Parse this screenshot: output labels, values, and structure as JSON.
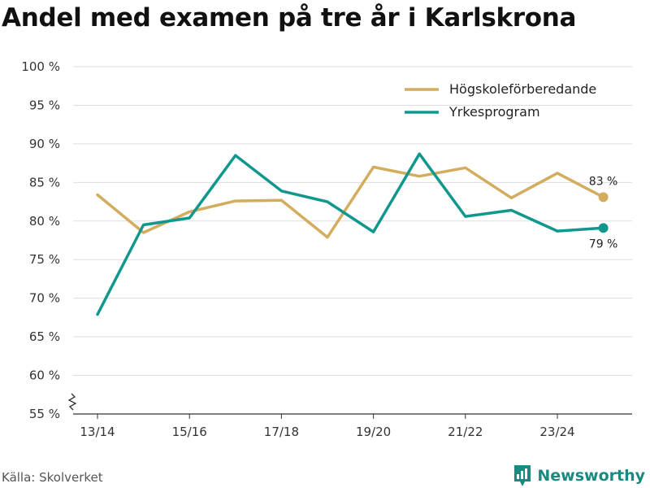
{
  "title": "Andel med examen på tre år i Karlskrona",
  "source": "Källa: Skolverket",
  "brand": {
    "name": "Newsworthy",
    "icon": "newsworthy-logo-icon",
    "color": "#1a8a80"
  },
  "chart_data": {
    "type": "line",
    "categories": [
      "13/14",
      "14/15",
      "15/16",
      "16/17",
      "17/18",
      "18/19",
      "19/20",
      "20/21",
      "21/22",
      "22/23",
      "23/24",
      "24/25"
    ],
    "x_tick_labels": [
      "13/14",
      "15/16",
      "17/18",
      "19/20",
      "21/22",
      "23/24"
    ],
    "y_ticks": [
      55,
      60,
      65,
      70,
      75,
      80,
      85,
      90,
      95,
      100
    ],
    "y_tick_suffix": " %",
    "ylim": [
      55,
      100
    ],
    "y_axis_break": true,
    "grid": true,
    "legend_position": "top-right",
    "series": [
      {
        "name": "Högskoleförberedande",
        "color": "#d4ac5e",
        "values": [
          83.4,
          78.5,
          81.2,
          82.6,
          82.7,
          77.9,
          87.0,
          85.8,
          86.9,
          83.0,
          86.2,
          83.1
        ],
        "end_label": "83 %"
      },
      {
        "name": "Yrkesprogram",
        "color": "#11988e",
        "values": [
          67.9,
          79.5,
          80.4,
          88.5,
          83.9,
          82.5,
          78.6,
          88.7,
          80.6,
          81.4,
          78.7,
          79.1
        ],
        "end_label": "79 %"
      }
    ]
  }
}
